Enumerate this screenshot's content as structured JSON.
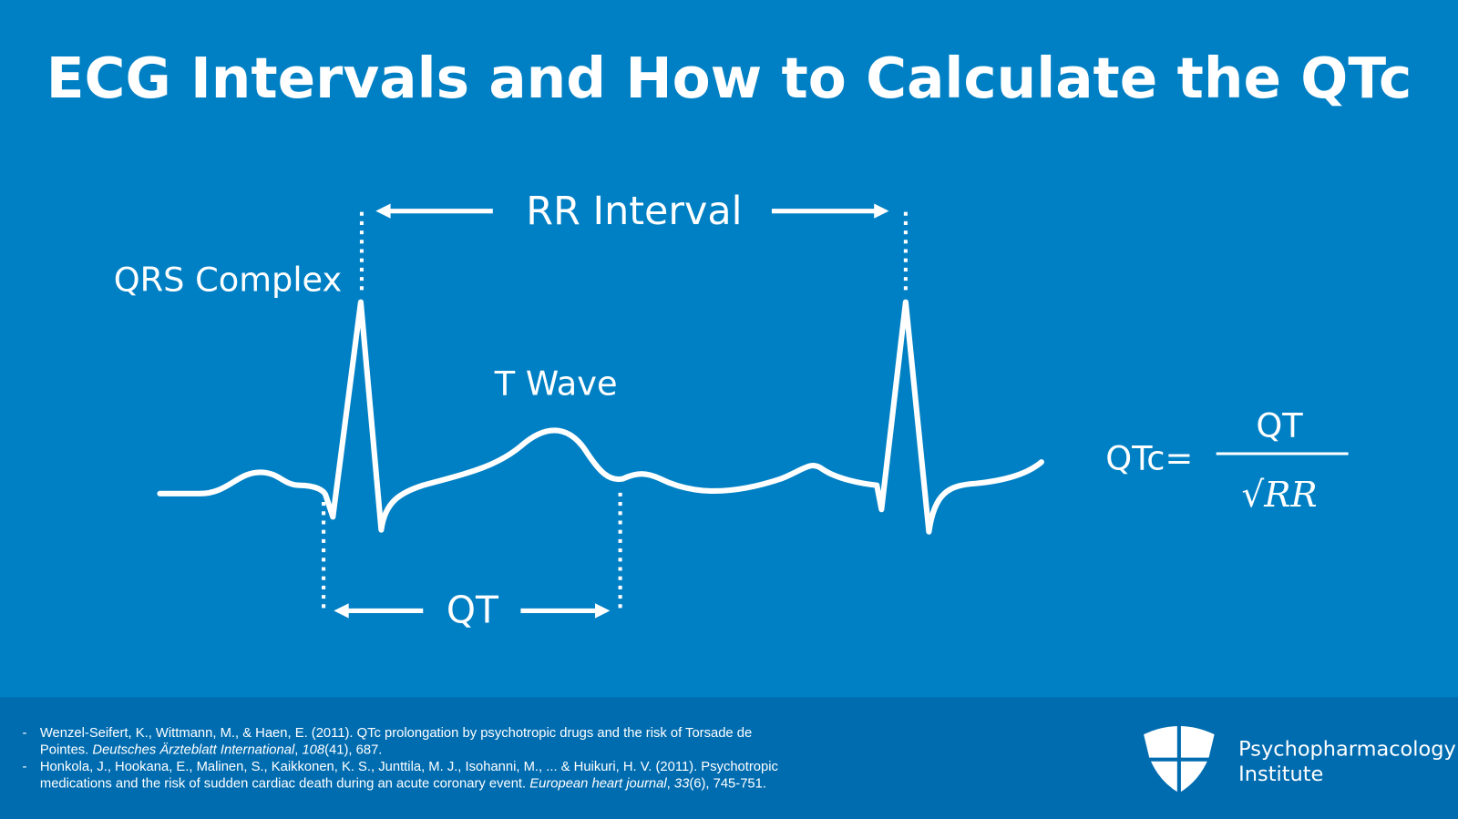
{
  "title": "ECG Intervals and How to Calculate the QTc",
  "labels": {
    "rr_interval": "RR Interval",
    "qrs_complex": "QRS Complex",
    "t_wave": "T Wave",
    "qt": "QT"
  },
  "formula": {
    "lhs": "QTc=",
    "numerator": "QT",
    "denominator": "√RR"
  },
  "references": [
    {
      "line1": "Wenzel-Seifert, K., Wittmann, M., & Haen, E. (2011). QTc prolongation by psychotropic drugs and the risk of Torsade de",
      "line2_pre": "Pointes. ",
      "journal": "Deutsches Ärzteblatt International",
      "mid": ", ",
      "volume": "108",
      "tail": "(41), 687."
    },
    {
      "line1": "Honkola, J., Hookana, E., Malinen, S., Kaikkonen, K. S., Junttila, M. J., Isohanni, M., ... & Huikuri, H. V. (2011). Psychotropic",
      "line2_pre": "medications and the risk of sudden cardiac death during an acute coronary event. ",
      "journal": "European heart journal",
      "mid": ", ",
      "volume": "33",
      "tail": "(6), 745-751."
    }
  ],
  "logo": {
    "line1": "Psychopharmacology",
    "line2": "Institute",
    "icon": "shield-cross-icon"
  },
  "colors": {
    "background": "#0080c4",
    "footer": "#006cb0",
    "foreground": "#ffffff"
  }
}
